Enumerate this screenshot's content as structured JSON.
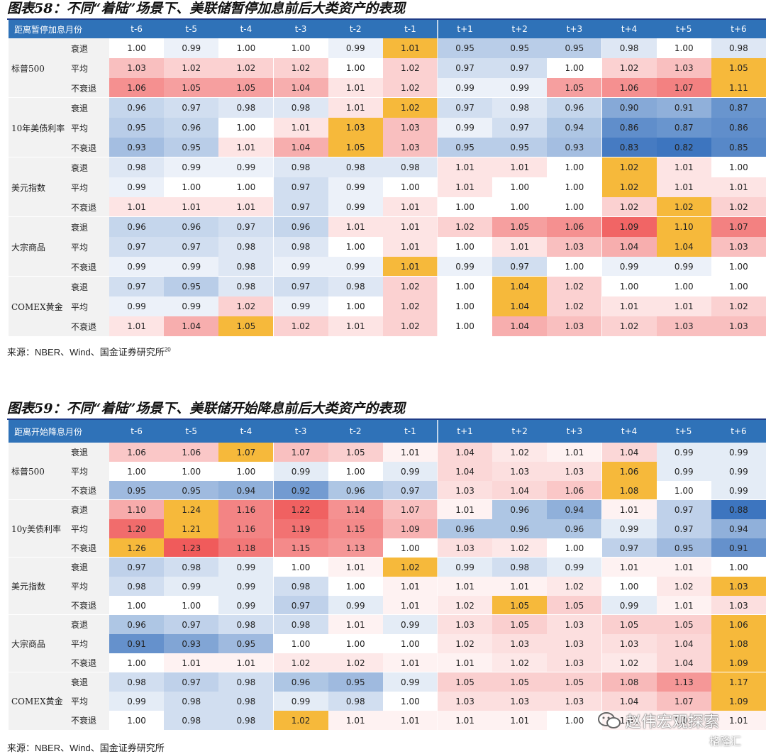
{
  "table58": {
    "title": "图表58：不同“着陆”场景下、美联储暂停加息前后大类资产的表现",
    "corner_label": "距离暂停加息月份",
    "columns": [
      "t-6",
      "t-5",
      "t-4",
      "t-3",
      "t-2",
      "t-1",
      "t+1",
      "t+2",
      "t+3",
      "t+4",
      "t+5",
      "t+6"
    ],
    "groups": [
      {
        "name": "标普500",
        "rows": [
          {
            "label": "衰退",
            "values": [
              "1.00",
              "0.99",
              "1.00",
              "1.00",
              "0.99",
              "1.01",
              "0.95",
              "0.95",
              "0.95",
              "0.98",
              "1.00",
              "0.98"
            ]
          },
          {
            "label": "平均",
            "values": [
              "1.03",
              "1.02",
              "1.02",
              "1.02",
              "1.00",
              "1.02",
              "0.97",
              "0.97",
              "1.00",
              "1.02",
              "1.03",
              "1.05"
            ]
          },
          {
            "label": "不衰退",
            "values": [
              "1.06",
              "1.05",
              "1.05",
              "1.04",
              "1.01",
              "1.02",
              "0.99",
              "0.99",
              "1.05",
              "1.06",
              "1.07",
              "1.11"
            ]
          }
        ]
      },
      {
        "name": "10年美债利率",
        "rows": [
          {
            "label": "衰退",
            "values": [
              "0.96",
              "0.97",
              "0.98",
              "0.98",
              "1.01",
              "1.02",
              "0.97",
              "0.98",
              "0.96",
              "0.90",
              "0.91",
              "0.87"
            ]
          },
          {
            "label": "平均",
            "values": [
              "0.95",
              "0.96",
              "1.00",
              "1.01",
              "1.03",
              "1.03",
              "0.99",
              "0.97",
              "0.94",
              "0.86",
              "0.87",
              "0.86"
            ]
          },
          {
            "label": "不衰退",
            "values": [
              "0.93",
              "0.95",
              "1.01",
              "1.04",
              "1.05",
              "1.03",
              "0.95",
              "0.95",
              "0.93",
              "0.83",
              "0.82",
              "0.85"
            ]
          }
        ]
      },
      {
        "name": "美元指数",
        "rows": [
          {
            "label": "衰退",
            "values": [
              "0.98",
              "0.99",
              "0.99",
              "0.98",
              "0.98",
              "0.98",
              "1.01",
              "1.01",
              "1.00",
              "1.02",
              "1.01",
              "1.00"
            ]
          },
          {
            "label": "平均",
            "values": [
              "0.99",
              "1.00",
              "1.00",
              "0.97",
              "0.99",
              "1.00",
              "1.01",
              "1.00",
              "1.00",
              "1.02",
              "1.01",
              "1.01"
            ]
          },
          {
            "label": "不衰退",
            "values": [
              "1.01",
              "1.01",
              "1.01",
              "0.97",
              "0.99",
              "1.01",
              "1.00",
              "1.00",
              "1.00",
              "1.02",
              "1.02",
              "1.02"
            ]
          }
        ]
      },
      {
        "name": "大宗商品",
        "rows": [
          {
            "label": "衰退",
            "values": [
              "0.96",
              "0.96",
              "0.97",
              "0.96",
              "1.01",
              "1.01",
              "1.02",
              "1.05",
              "1.06",
              "1.09",
              "1.10",
              "1.07"
            ]
          },
          {
            "label": "平均",
            "values": [
              "0.97",
              "0.97",
              "0.98",
              "0.98",
              "1.00",
              "1.01",
              "1.00",
              "1.01",
              "1.03",
              "1.04",
              "1.04",
              "1.03"
            ]
          },
          {
            "label": "不衰退",
            "values": [
              "0.99",
              "0.99",
              "0.98",
              "0.99",
              "0.99",
              "1.01",
              "0.99",
              "0.97",
              "1.00",
              "0.99",
              "0.99",
              "1.00"
            ]
          }
        ]
      },
      {
        "name": "COMEX黄金",
        "rows": [
          {
            "label": "衰退",
            "values": [
              "0.97",
              "0.95",
              "0.98",
              "0.97",
              "0.98",
              "1.02",
              "1.00",
              "1.04",
              "1.02",
              "1.00",
              "1.00",
              "1.00"
            ]
          },
          {
            "label": "平均",
            "values": [
              "0.99",
              "0.99",
              "1.02",
              "0.99",
              "1.00",
              "1.02",
              "1.00",
              "1.04",
              "1.02",
              "1.01",
              "1.01",
              "1.02"
            ]
          },
          {
            "label": "不衰退",
            "values": [
              "1.01",
              "1.04",
              "1.05",
              "1.02",
              "1.01",
              "1.02",
              "1.00",
              "1.04",
              "1.03",
              "1.02",
              "1.03",
              "1.03"
            ]
          }
        ]
      }
    ],
    "highlights": [
      {
        "g": 0,
        "r": 0,
        "c": 5
      },
      {
        "g": 0,
        "r": 1,
        "c": 11
      },
      {
        "g": 0,
        "r": 2,
        "c": 11
      },
      {
        "g": 1,
        "r": 0,
        "c": 5
      },
      {
        "g": 1,
        "r": 1,
        "c": 4
      },
      {
        "g": 1,
        "r": 2,
        "c": 4
      },
      {
        "g": 2,
        "r": 0,
        "c": 9
      },
      {
        "g": 2,
        "r": 1,
        "c": 9
      },
      {
        "g": 2,
        "r": 2,
        "c": 10
      },
      {
        "g": 3,
        "r": 0,
        "c": 10
      },
      {
        "g": 3,
        "r": 1,
        "c": 10
      },
      {
        "g": 3,
        "r": 2,
        "c": 5
      },
      {
        "g": 4,
        "r": 0,
        "c": 7
      },
      {
        "g": 4,
        "r": 1,
        "c": 7
      },
      {
        "g": 4,
        "r": 2,
        "c": 2
      }
    ],
    "source": "来源：NBER、Wind、国金证券研究所",
    "source_sup": "20"
  },
  "table59": {
    "title": "图表59：不同“着陆”场景下、美联储开始降息前后大类资产的表现",
    "corner_label": "距离开始降息月份",
    "columns": [
      "t-6",
      "t-5",
      "t-4",
      "t-3",
      "t-2",
      "t-1",
      "t+1",
      "t+2",
      "t+3",
      "t+4",
      "t+5",
      "t+6"
    ],
    "groups": [
      {
        "name": "标普500",
        "rows": [
          {
            "label": "衰退",
            "values": [
              "1.06",
              "1.06",
              "1.07",
              "1.07",
              "1.05",
              "1.01",
              "1.04",
              "1.02",
              "1.01",
              "1.04",
              "0.99",
              "0.99"
            ]
          },
          {
            "label": "平均",
            "values": [
              "1.00",
              "1.00",
              "1.00",
              "0.99",
              "1.00",
              "0.99",
              "1.04",
              "1.03",
              "1.03",
              "1.06",
              "0.99",
              "0.99"
            ]
          },
          {
            "label": "不衰退",
            "values": [
              "0.95",
              "0.95",
              "0.94",
              "0.92",
              "0.96",
              "0.97",
              "1.03",
              "1.04",
              "1.06",
              "1.08",
              "1.00",
              "0.99"
            ]
          }
        ]
      },
      {
        "name": "10y美债利率",
        "rows": [
          {
            "label": "衰退",
            "values": [
              "1.10",
              "1.24",
              "1.16",
              "1.22",
              "1.14",
              "1.07",
              "1.01",
              "0.96",
              "0.94",
              "1.01",
              "0.97",
              "0.88"
            ]
          },
          {
            "label": "平均",
            "values": [
              "1.20",
              "1.21",
              "1.16",
              "1.19",
              "1.15",
              "1.09",
              "0.96",
              "0.96",
              "0.96",
              "0.99",
              "0.97",
              "0.94"
            ]
          },
          {
            "label": "不衰退",
            "values": [
              "1.26",
              "1.23",
              "1.18",
              "1.15",
              "1.13",
              "1.00",
              "1.03",
              "1.02",
              "1.00",
              "0.97",
              "0.95",
              "0.91"
            ]
          }
        ]
      },
      {
        "name": "美元指数",
        "rows": [
          {
            "label": "衰退",
            "values": [
              "0.97",
              "0.98",
              "0.99",
              "1.00",
              "1.01",
              "1.02",
              "0.99",
              "0.98",
              "0.99",
              "1.01",
              "1.01",
              "1.00"
            ]
          },
          {
            "label": "平均",
            "values": [
              "0.98",
              "0.99",
              "0.99",
              "0.98",
              "1.00",
              "1.01",
              "1.01",
              "1.01",
              "1.02",
              "1.00",
              "1.02",
              "1.03"
            ]
          },
          {
            "label": "不衰退",
            "values": [
              "1.00",
              "1.00",
              "0.99",
              "0.97",
              "0.99",
              "1.01",
              "1.02",
              "1.05",
              "1.05",
              "0.99",
              "1.01",
              "1.03"
            ]
          }
        ]
      },
      {
        "name": "大宗商品",
        "rows": [
          {
            "label": "衰退",
            "values": [
              "0.96",
              "0.97",
              "0.98",
              "0.98",
              "1.01",
              "0.99",
              "1.03",
              "1.05",
              "1.03",
              "1.05",
              "1.05",
              "1.06"
            ]
          },
          {
            "label": "平均",
            "values": [
              "0.91",
              "0.93",
              "0.95",
              "1.00",
              "1.00",
              "1.00",
              "1.02",
              "1.03",
              "1.03",
              "1.03",
              "1.04",
              "1.08"
            ]
          },
          {
            "label": "不衰退",
            "values": [
              "1.00",
              "1.01",
              "1.01",
              "1.02",
              "1.02",
              "1.01",
              "1.01",
              "1.02",
              "1.03",
              "1.02",
              "1.04",
              "1.09"
            ]
          }
        ]
      },
      {
        "name": "COMEX黄金",
        "rows": [
          {
            "label": "衰退",
            "values": [
              "0.98",
              "0.97",
              "0.98",
              "0.96",
              "0.95",
              "0.99",
              "1.05",
              "1.05",
              "1.05",
              "1.08",
              "1.13",
              "1.17"
            ]
          },
          {
            "label": "平均",
            "values": [
              "0.99",
              "0.98",
              "0.98",
              "0.99",
              "0.98",
              "1.00",
              "1.03",
              "1.03",
              "1.03",
              "1.04",
              "1.07",
              "1.09"
            ]
          },
          {
            "label": "不衰退",
            "values": [
              "1.00",
              "0.98",
              "0.98",
              "1.02",
              "1.01",
              "1.01",
              "1.01",
              "1.01",
              "1.00",
              "1.01",
              "1.01",
              "1.01"
            ]
          }
        ]
      }
    ],
    "highlights": [
      {
        "g": 0,
        "r": 0,
        "c": 2
      },
      {
        "g": 0,
        "r": 1,
        "c": 9
      },
      {
        "g": 0,
        "r": 2,
        "c": 9
      },
      {
        "g": 1,
        "r": 0,
        "c": 1
      },
      {
        "g": 1,
        "r": 1,
        "c": 1
      },
      {
        "g": 1,
        "r": 2,
        "c": 0
      },
      {
        "g": 2,
        "r": 0,
        "c": 5
      },
      {
        "g": 2,
        "r": 1,
        "c": 11
      },
      {
        "g": 2,
        "r": 2,
        "c": 7
      },
      {
        "g": 3,
        "r": 0,
        "c": 11
      },
      {
        "g": 3,
        "r": 1,
        "c": 11
      },
      {
        "g": 3,
        "r": 2,
        "c": 11
      },
      {
        "g": 4,
        "r": 0,
        "c": 11
      },
      {
        "g": 4,
        "r": 1,
        "c": 11
      },
      {
        "g": 4,
        "r": 2,
        "c": 3
      }
    ],
    "source": "来源：NBER、Wind、国金证券研究所"
  },
  "watermark": {
    "text": "赵伟宏观探索",
    "sub": "格隆汇"
  },
  "colors": {
    "header": "#2f72b8",
    "highlight": "#f6b93b",
    "label_bg": "#f2f2f2"
  }
}
